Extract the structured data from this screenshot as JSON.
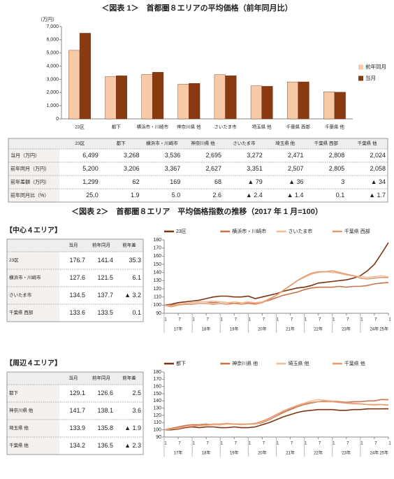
{
  "chart_data": [
    {
      "type": "bar",
      "title": "＜図表 1＞　首都圏８エリアの平均価格（前年同月比）",
      "y_label": "（万円）",
      "categories": [
        "23区",
        "都下",
        "横浜市・川崎市",
        "神奈川県 他",
        "さいたま市",
        "埼玉県 他",
        "千葉県 西部",
        "千葉県 他"
      ],
      "series": [
        {
          "name": "前年同月",
          "color": "#f8c9a6",
          "values": [
            5200,
            3206,
            3367,
            2627,
            3351,
            2507,
            2805,
            2058
          ]
        },
        {
          "name": "当月",
          "color": "#8a3a10",
          "values": [
            6499,
            3268,
            3536,
            2695,
            3272,
            2471,
            2808,
            2024
          ]
        }
      ],
      "ylim": [
        0,
        7000
      ],
      "yticks": [
        0,
        {
          "value": 1000,
          "label": "1,000"
        },
        {
          "value": 2000,
          "label": "2,000"
        },
        {
          "value": 3000,
          "label": "3,000"
        },
        {
          "value": 4000,
          "label": "4,000"
        },
        {
          "value": 5000,
          "label": "5,000"
        },
        {
          "value": 6000,
          "label": "6,000"
        },
        {
          "value": 7000,
          "label": "7,000"
        }
      ],
      "grid": false,
      "legend": "right"
    },
    {
      "type": "line",
      "categories": [
        "1",
        null,
        "7",
        null,
        "1",
        null,
        "7",
        null,
        "1",
        null,
        "7",
        null,
        "1",
        null,
        "7",
        null,
        "1",
        null,
        "7",
        null,
        "1",
        null,
        "7",
        null,
        "1",
        null,
        "7",
        null,
        "1",
        null,
        "7",
        null,
        "1"
      ],
      "years": [
        "17年",
        "18年",
        "19年",
        "20年",
        "21年",
        "22年",
        "23年",
        "24年",
        "25年"
      ],
      "ylim": [
        90,
        180
      ],
      "yticks": [
        90,
        100,
        110,
        120,
        130,
        140,
        150,
        160,
        170,
        180
      ],
      "grid": false,
      "legend": "top",
      "series": [
        {
          "name": "23区",
          "color": "#7b3510",
          "values": [
            100,
            101,
            103,
            104,
            105,
            106,
            108,
            110,
            111,
            111,
            110,
            110,
            111,
            108,
            110,
            112,
            114,
            117,
            119,
            121,
            122,
            124,
            127,
            128,
            129,
            130,
            131,
            133,
            136,
            142,
            150,
            163,
            176.7
          ]
        },
        {
          "name": "横浜市・川崎市",
          "color": "#c8734a",
          "values": [
            100,
            100,
            101,
            102,
            103,
            104,
            104,
            103,
            104,
            103,
            102,
            103,
            103,
            102,
            104,
            106,
            109,
            112,
            114,
            116,
            119,
            121,
            122,
            122,
            122,
            123,
            122,
            123,
            123,
            124,
            126,
            127,
            127.6
          ]
        },
        {
          "name": "さいたま市",
          "color": "#f3bd9c",
          "values": [
            100,
            99,
            101,
            102,
            103,
            104,
            104,
            105,
            104,
            103,
            104,
            103,
            104,
            103,
            104,
            108,
            112,
            118,
            124,
            130,
            134,
            138,
            140,
            141,
            140,
            139,
            137,
            136,
            135,
            134,
            135,
            136,
            134.5
          ]
        },
        {
          "name": "千葉県 西部",
          "color": "#e39a70",
          "values": [
            100,
            98,
            100,
            101,
            101,
            102,
            102,
            101,
            102,
            101,
            102,
            101,
            102,
            101,
            103,
            107,
            112,
            118,
            124,
            130,
            135,
            139,
            141,
            141,
            142,
            140,
            138,
            136,
            133,
            132,
            133,
            134,
            133.6
          ]
        }
      ]
    },
    {
      "type": "line",
      "categories": [
        "1",
        null,
        "7",
        null,
        "1",
        null,
        "7",
        null,
        "1",
        null,
        "7",
        null,
        "1",
        null,
        "7",
        null,
        "1",
        null,
        "7",
        null,
        "1",
        null,
        "7",
        null,
        "1",
        null,
        "7",
        null,
        "1",
        null,
        "7",
        null,
        "1"
      ],
      "years": [
        "17年",
        "18年",
        "19年",
        "20年",
        "21年",
        "22年",
        "23年",
        "24年",
        "25年"
      ],
      "ylim": [
        90,
        180
      ],
      "yticks": [
        90,
        100,
        110,
        120,
        130,
        140,
        150,
        160,
        170,
        180
      ],
      "grid": false,
      "legend": "top",
      "series": [
        {
          "name": "都下",
          "color": "#7b3510",
          "values": [
            100,
            100,
            101,
            103,
            104,
            103,
            104,
            104,
            103,
            103,
            104,
            103,
            103,
            104,
            107,
            110,
            114,
            118,
            121,
            124,
            126,
            127,
            128,
            128,
            128,
            127,
            127,
            128,
            128,
            129,
            129,
            129,
            129.1
          ]
        },
        {
          "name": "神奈川県 他",
          "color": "#c8734a",
          "values": [
            100,
            102,
            104,
            106,
            107,
            107,
            108,
            107,
            107,
            108,
            108,
            107,
            108,
            108,
            110,
            114,
            119,
            124,
            128,
            132,
            135,
            137,
            139,
            140,
            140,
            139,
            138,
            139,
            139,
            140,
            140,
            142,
            141.7
          ]
        },
        {
          "name": "埼玉県 他",
          "color": "#f3bd9c",
          "values": [
            100,
            101,
            102,
            104,
            105,
            106,
            106,
            107,
            107,
            108,
            108,
            107,
            108,
            108,
            111,
            115,
            120,
            126,
            130,
            134,
            137,
            140,
            142,
            141,
            140,
            138,
            137,
            137,
            136,
            135,
            134,
            135,
            133.9
          ]
        },
        {
          "name": "千葉県 他",
          "color": "#e39a70",
          "values": [
            100,
            101,
            103,
            104,
            105,
            106,
            107,
            108,
            108,
            109,
            108,
            108,
            108,
            109,
            112,
            116,
            121,
            126,
            130,
            133,
            136,
            138,
            139,
            139,
            139,
            138,
            137,
            136,
            136,
            135,
            135,
            135,
            134.2
          ]
        }
      ]
    }
  ],
  "figure1_table": {
    "rows": [
      {
        "label": "当月（万円）",
        "cells": [
          "6,499",
          "3,268",
          "3,536",
          "2,695",
          "3,272",
          "2,471",
          "2,808",
          "2,024"
        ]
      },
      {
        "label": "前年同月（万円）",
        "cells": [
          "5,200",
          "3,206",
          "3,367",
          "2,627",
          "3,351",
          "2,507",
          "2,805",
          "2,058"
        ]
      },
      {
        "label": "前年差額（万円）",
        "cells": [
          "1,299",
          "62",
          "169",
          "68",
          "▲ 79",
          "▲ 36",
          "3",
          "▲ 34"
        ]
      },
      {
        "label": "前年同月比（%）",
        "cells": [
          "25.0",
          "1.9",
          "5.0",
          "2.6",
          "▲ 2.4",
          "▲ 1.4",
          "0.1",
          "▲ 1.7"
        ]
      }
    ]
  },
  "figure2_title": "＜図表 2＞　首都圏８エリア　平均価格指数の推移（2017 年 1 月=100）",
  "center_table": {
    "heading": "【中心４エリア】",
    "columns": [
      "当月",
      "前年同月",
      "前年差"
    ],
    "rows": [
      [
        "176.7",
        "141.4",
        "35.3"
      ],
      [
        "127.6",
        "121.5",
        "6.1"
      ],
      [
        "134.5",
        "137.7",
        "▲ 3.2"
      ],
      [
        "133.6",
        "133.5",
        "0.1"
      ]
    ]
  },
  "periphery_table": {
    "heading": "【周辺４エリア】",
    "columns": [
      "当月",
      "前年同月",
      "前年差"
    ],
    "rows": [
      [
        "129.1",
        "126.6",
        "2.5"
      ],
      [
        "141.7",
        "138.1",
        "3.6"
      ],
      [
        "133.9",
        "135.8",
        "▲ 1.9"
      ],
      [
        "134.2",
        "136.5",
        "▲ 2.3"
      ]
    ]
  }
}
